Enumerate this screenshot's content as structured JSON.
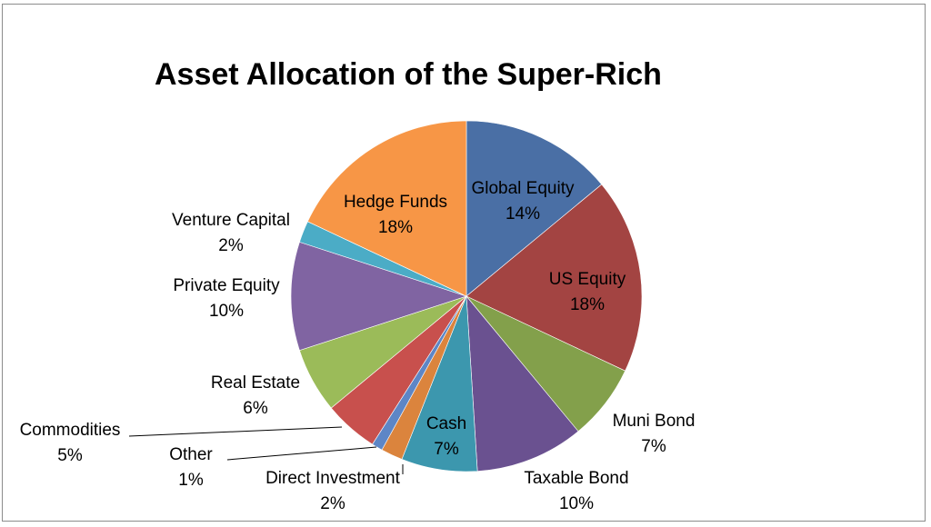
{
  "chart_data": {
    "type": "pie",
    "title": "Asset Allocation of the Super-Rich",
    "legend": "none",
    "slices": [
      {
        "name": "Global Equity",
        "value": 14,
        "label": "14%",
        "color": "#4A6FA5"
      },
      {
        "name": "US Equity",
        "value": 18,
        "label": "18%",
        "color": "#A34442"
      },
      {
        "name": "Muni Bond",
        "value": 7,
        "label": "7%",
        "color": "#83A04B"
      },
      {
        "name": "Taxable Bond",
        "value": 10,
        "label": "10%",
        "color": "#6A5190"
      },
      {
        "name": "Cash",
        "value": 7,
        "label": "7%",
        "color": "#3C97AE"
      },
      {
        "name": "Direct Investment",
        "value": 2,
        "label": "2%",
        "color": "#DB843D"
      },
      {
        "name": "Other",
        "value": 1,
        "label": "1%",
        "color": "#5D86C6"
      },
      {
        "name": "Commodities",
        "value": 5,
        "label": "5%",
        "color": "#C8504D"
      },
      {
        "name": "Real Estate",
        "value": 6,
        "label": "6%",
        "color": "#9BBB59"
      },
      {
        "name": "Private Equity",
        "value": 10,
        "label": "10%",
        "color": "#8064A2"
      },
      {
        "name": "Venture Capital",
        "value": 2,
        "label": "2%",
        "color": "#4BACC6"
      },
      {
        "name": "Hedge Funds",
        "value": 18,
        "label": "18%",
        "color": "#F79646"
      }
    ]
  }
}
